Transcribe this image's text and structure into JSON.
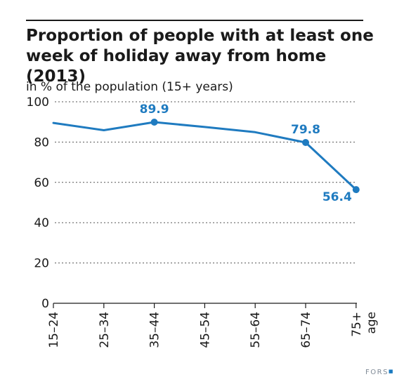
{
  "chart_data": {
    "type": "line",
    "title": "Proportion of people with at least one week of holiday away from home (2013)",
    "subtitle": "in % of the population (15+ years)",
    "xlabel": "age",
    "ylabel": "",
    "categories": [
      "15–24",
      "25–34",
      "35–44",
      "45–54",
      "55–64",
      "65–74",
      "75+"
    ],
    "series": [
      {
        "values": [
          89.5,
          85.9,
          89.9,
          87.5,
          84.9,
          79.8,
          56.4
        ]
      }
    ],
    "labeled_points": [
      {
        "index": 2,
        "value": 89.9,
        "label": "89.9",
        "position": "above"
      },
      {
        "index": 5,
        "value": 79.8,
        "label": "79.8",
        "position": "above"
      },
      {
        "index": 6,
        "value": 56.4,
        "label": "56.4",
        "position": "left"
      }
    ],
    "ylim": [
      0,
      100
    ],
    "yticks": [
      0,
      20,
      40,
      60,
      80,
      100
    ],
    "grid": true,
    "line_color": "#1f7bc0",
    "axis_color": "#1a1a1a",
    "grid_color": "#555555"
  },
  "footer": {
    "logo": "FORS"
  },
  "colors": {
    "accent": "#1f7bc0",
    "logo_text": "#7f8a96",
    "logo_dot": "#1a7ac0"
  }
}
